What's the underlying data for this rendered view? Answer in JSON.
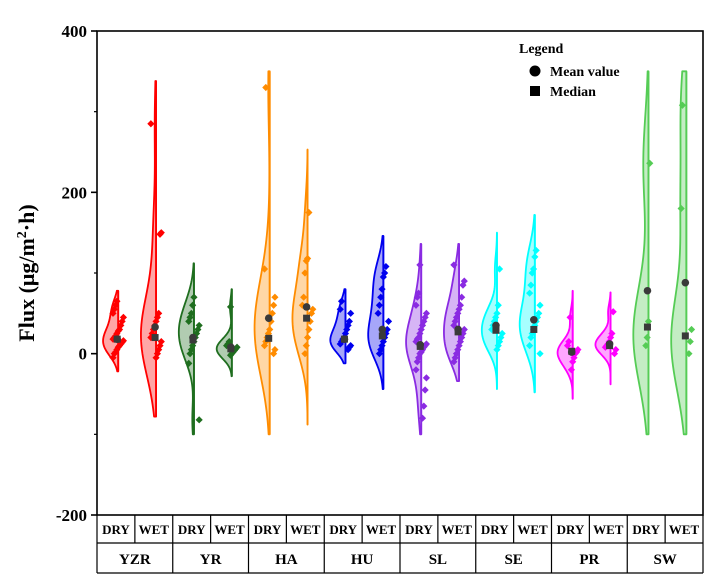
{
  "chart_data": {
    "type": "violin",
    "ylabel_main": "Flux (μg/m",
    "ylabel_sup": "2",
    "ylabel_tail": "·h)",
    "ylim": [
      -200,
      400
    ],
    "yticks": [
      "-200",
      "0",
      "200",
      "400"
    ],
    "ytick_values": [
      -200,
      0,
      200,
      400
    ],
    "groups": [
      "YZR",
      "YR",
      "HA",
      "HU",
      "SL",
      "SE",
      "PR",
      "SW"
    ],
    "seasons": [
      "DRY",
      "WET"
    ],
    "legend": {
      "title": "Legend",
      "mean_label": "Mean value",
      "median_label": "Median"
    },
    "series": [
      {
        "group": "YZR",
        "season": "DRY",
        "color": "#ff0000",
        "min": -22,
        "max": 78,
        "mean": 18,
        "median": 18,
        "points": [
          -5,
          0,
          2,
          5,
          8,
          10,
          12,
          14,
          16,
          18,
          20,
          22,
          25,
          28,
          30,
          35,
          40,
          45,
          50,
          55,
          60,
          65
        ]
      },
      {
        "group": "YZR",
        "season": "WET",
        "color": "#ff0000",
        "min": -78,
        "max": 338,
        "mean": 33,
        "median": 20,
        "points": [
          -5,
          0,
          5,
          10,
          15,
          20,
          25,
          30,
          35,
          40,
          45,
          50,
          148,
          150,
          285
        ]
      },
      {
        "group": "YR",
        "season": "DRY",
        "color": "#1f6e1f",
        "min": -100,
        "max": 112,
        "mean": 20,
        "median": 17,
        "points": [
          -82,
          -12,
          0,
          5,
          10,
          15,
          20,
          25,
          30,
          35,
          40,
          45,
          50,
          60,
          70
        ]
      },
      {
        "group": "YR",
        "season": "WET",
        "color": "#1f6e1f",
        "min": -28,
        "max": 80,
        "mean": 8,
        "median": 6,
        "points": [
          -2,
          0,
          2,
          4,
          6,
          8,
          10,
          12,
          15,
          58
        ]
      },
      {
        "group": "HA",
        "season": "DRY",
        "color": "#ff8c00",
        "min": -100,
        "max": 350,
        "mean": 44,
        "median": 19,
        "points": [
          0,
          5,
          10,
          15,
          20,
          25,
          30,
          40,
          50,
          60,
          70,
          105,
          330
        ]
      },
      {
        "group": "HA",
        "season": "WET",
        "color": "#ff8c00",
        "min": -88,
        "max": 253,
        "mean": 58,
        "median": 44,
        "points": [
          0,
          10,
          20,
          30,
          40,
          50,
          55,
          60,
          70,
          100,
          115,
          118,
          175
        ]
      },
      {
        "group": "HU",
        "season": "DRY",
        "color": "#0000ee",
        "min": -12,
        "max": 80,
        "mean": 18,
        "median": 18,
        "points": [
          5,
          8,
          10,
          12,
          15,
          18,
          20,
          25,
          30,
          35,
          40,
          50,
          55,
          65
        ]
      },
      {
        "group": "HU",
        "season": "WET",
        "color": "#0000ee",
        "min": -44,
        "max": 146,
        "mean": 30,
        "median": 22,
        "points": [
          0,
          5,
          10,
          15,
          20,
          25,
          30,
          40,
          50,
          60,
          70,
          80,
          95,
          100,
          108
        ]
      },
      {
        "group": "SL",
        "season": "DRY",
        "color": "#8a2be2",
        "min": -100,
        "max": 136,
        "mean": 11,
        "median": 9,
        "points": [
          -80,
          -65,
          -45,
          -30,
          -20,
          -10,
          -5,
          0,
          2,
          5,
          8,
          10,
          12,
          15,
          18,
          20,
          25,
          30,
          35,
          40,
          45,
          50,
          60,
          70,
          75,
          110
        ]
      },
      {
        "group": "SL",
        "season": "WET",
        "color": "#8a2be2",
        "min": -34,
        "max": 136,
        "mean": 30,
        "median": 27,
        "points": [
          -10,
          -5,
          0,
          5,
          10,
          15,
          20,
          25,
          30,
          35,
          40,
          45,
          50,
          55,
          60,
          70,
          85,
          90,
          110
        ]
      },
      {
        "group": "SE",
        "season": "DRY",
        "color": "#00ffff",
        "min": -44,
        "max": 150,
        "mean": 35,
        "median": 29,
        "points": [
          5,
          10,
          15,
          20,
          25,
          30,
          35,
          40,
          45,
          50,
          60,
          105
        ]
      },
      {
        "group": "SE",
        "season": "WET",
        "color": "#00ffff",
        "min": -48,
        "max": 172,
        "mean": 42,
        "median": 30,
        "points": [
          0,
          10,
          20,
          25,
          30,
          35,
          40,
          45,
          50,
          60,
          75,
          85,
          100,
          105,
          120,
          128
        ]
      },
      {
        "group": "PR",
        "season": "DRY",
        "color": "#ff00ff",
        "min": -56,
        "max": 78,
        "mean": 2,
        "median": 3,
        "points": [
          -20,
          -10,
          -5,
          0,
          2,
          5,
          10,
          15,
          45
        ]
      },
      {
        "group": "PR",
        "season": "WET",
        "color": "#ff00ff",
        "min": -38,
        "max": 76,
        "mean": 12,
        "median": 10,
        "points": [
          0,
          5,
          8,
          10,
          12,
          15,
          20,
          25,
          52
        ]
      },
      {
        "group": "SW",
        "season": "DRY",
        "color": "#55cc55",
        "min": -100,
        "max": 350,
        "mean": 78,
        "median": 33,
        "points": [
          10,
          20,
          40,
          236
        ]
      },
      {
        "group": "SW",
        "season": "WET",
        "color": "#55cc55",
        "min": -100,
        "max": 350,
        "mean": 88,
        "median": 22,
        "points": [
          0,
          15,
          30,
          180,
          308
        ]
      }
    ]
  }
}
